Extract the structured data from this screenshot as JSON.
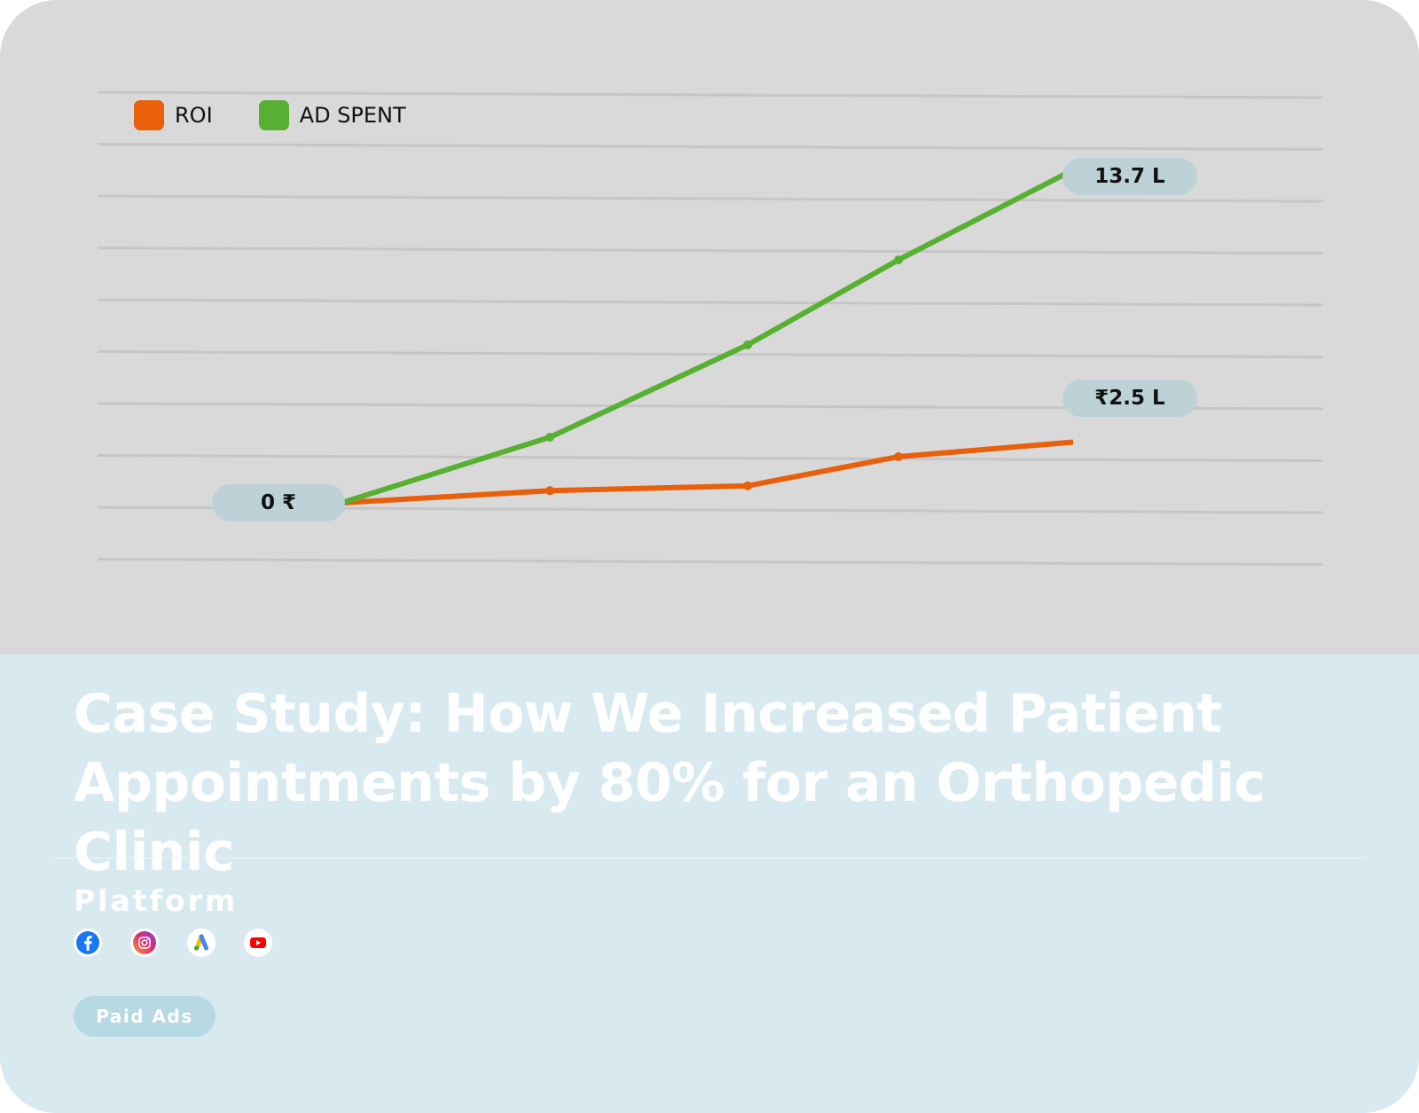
{
  "chart_data": {
    "type": "line",
    "x": [
      0,
      1,
      2,
      3,
      4
    ],
    "series": [
      {
        "name": "ROI",
        "color": "#e8600c",
        "values": [
          0,
          0.5,
          0.7,
          1.9,
          2.5
        ]
      },
      {
        "name": "AD SPENT",
        "color": "#58b032",
        "values": [
          0,
          2.7,
          6.5,
          10.0,
          13.7
        ]
      }
    ],
    "annotations": [
      "0 ₹",
      "13.7 L",
      "₹2.5 L"
    ],
    "grid": true,
    "legend": "top-left"
  },
  "legend": [
    {
      "label": "ROI",
      "color": "#e8600c"
    },
    {
      "label": "AD SPENT",
      "color": "#58b032"
    }
  ],
  "title": "Case Study: How We Increased Patient Appointments by 80% for an Orthopedic Clinic",
  "platform_label": "Platform",
  "platform_icons": [
    "facebook-icon",
    "instagram-icon",
    "google-ads-icon",
    "youtube-icon"
  ],
  "tag": "Paid Ads",
  "colors": {
    "chart_bg": "#d9d9d9",
    "card_bg": "#d8eaf0",
    "pill_bg": "#bcd2d6",
    "tag_bg": "#b7d9e3"
  }
}
